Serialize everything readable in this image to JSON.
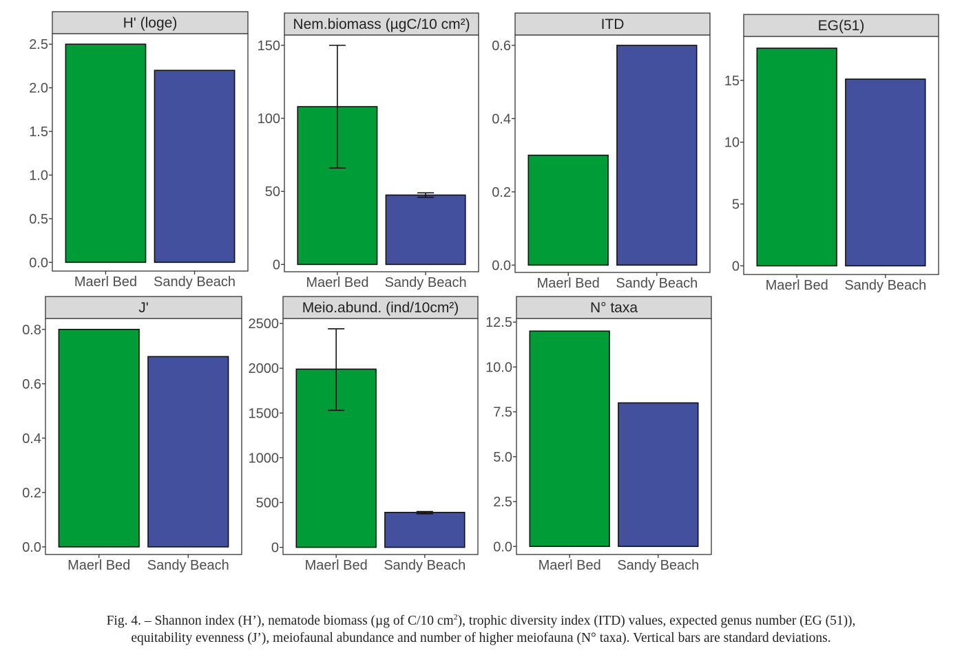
{
  "colors": {
    "maerl": "#009C38",
    "sandy": "#43509E",
    "strip": "#D9D9D9",
    "frame": "#333333",
    "text": "#4D4D4D"
  },
  "chart_data": [
    {
      "type": "bar",
      "title": "H' (loge)",
      "categories": [
        "Maerl Bed",
        "Sandy Beach"
      ],
      "values": [
        2.5,
        2.2
      ],
      "ylim": [
        -0.1,
        2.62
      ],
      "yticks": [
        "0.0",
        "0.5",
        "1.0",
        "1.5",
        "2.0",
        "2.5"
      ],
      "ytick_values": [
        0,
        0.5,
        1.0,
        1.5,
        2.0,
        2.5
      ]
    },
    {
      "type": "bar",
      "title": "Nem.biomass (µgC/10 cm²)",
      "categories": [
        "Maerl Bed",
        "Sandy Beach"
      ],
      "values": [
        108,
        47.5
      ],
      "errors": [
        [
          66,
          150
        ],
        [
          46,
          49
        ]
      ],
      "ylim": [
        -5,
        157
      ],
      "yticks": [
        "0",
        "50",
        "100",
        "150"
      ],
      "ytick_values": [
        0,
        50,
        100,
        150
      ]
    },
    {
      "type": "bar",
      "title": "ITD",
      "categories": [
        "Maerl Bed",
        "Sandy Beach"
      ],
      "values": [
        0.3,
        0.6
      ],
      "ylim": [
        -0.02,
        0.628
      ],
      "yticks": [
        "0.0",
        "0.2",
        "0.4",
        "0.6"
      ],
      "ytick_values": [
        0,
        0.2,
        0.4,
        0.6
      ]
    },
    {
      "type": "bar",
      "title": "EG(51)",
      "categories": [
        "Maerl Bed",
        "Sandy Beach"
      ],
      "values": [
        17.6,
        15.1
      ],
      "ylim": [
        -0.7,
        18.55
      ],
      "yticks": [
        "0",
        "5",
        "10",
        "15"
      ],
      "ytick_values": [
        0,
        5,
        10,
        15
      ]
    },
    {
      "type": "bar",
      "title": "J'",
      "categories": [
        "Maerl Bed",
        "Sandy Beach"
      ],
      "values": [
        0.8,
        0.7
      ],
      "ylim": [
        -0.028,
        0.84
      ],
      "yticks": [
        "0.0",
        "0.2",
        "0.4",
        "0.6",
        "0.8"
      ],
      "ytick_values": [
        0,
        0.2,
        0.4,
        0.6,
        0.8
      ]
    },
    {
      "type": "bar",
      "title": "Meio.abund. (ind/10cm²)",
      "categories": [
        "Maerl Bed",
        "Sandy Beach"
      ],
      "values": [
        1990,
        390
      ],
      "errors": [
        [
          1530,
          2440
        ],
        [
          375,
          400
        ]
      ],
      "ylim": [
        -80,
        2555
      ],
      "yticks": [
        "0",
        "500",
        "1000",
        "1500",
        "2000",
        "2500"
      ],
      "ytick_values": [
        0,
        500,
        1000,
        1500,
        2000,
        2500
      ]
    },
    {
      "type": "bar",
      "title": "N° taxa",
      "categories": [
        "Maerl Bed",
        "Sandy Beach"
      ],
      "values": [
        12,
        8
      ],
      "ylim": [
        -0.45,
        12.7
      ],
      "yticks": [
        "0.0",
        "2.5",
        "5.0",
        "7.5",
        "10.0",
        "12.5"
      ],
      "ytick_values": [
        0,
        2.5,
        5.0,
        7.5,
        10.0,
        12.5
      ]
    }
  ],
  "caption": {
    "line1_a": "Fig. 4. – Shannon index (H’), nematode biomass (µg of C/10 cm",
    "line1_sup": "2",
    "line1_b": "), trophic diversity index (ITD) values, expected genus number (EG (51)),",
    "line2": "equitability evenness (J’), meiofaunal abundance and number of higher meiofauna (N° taxa). Vertical bars are standard deviations."
  }
}
